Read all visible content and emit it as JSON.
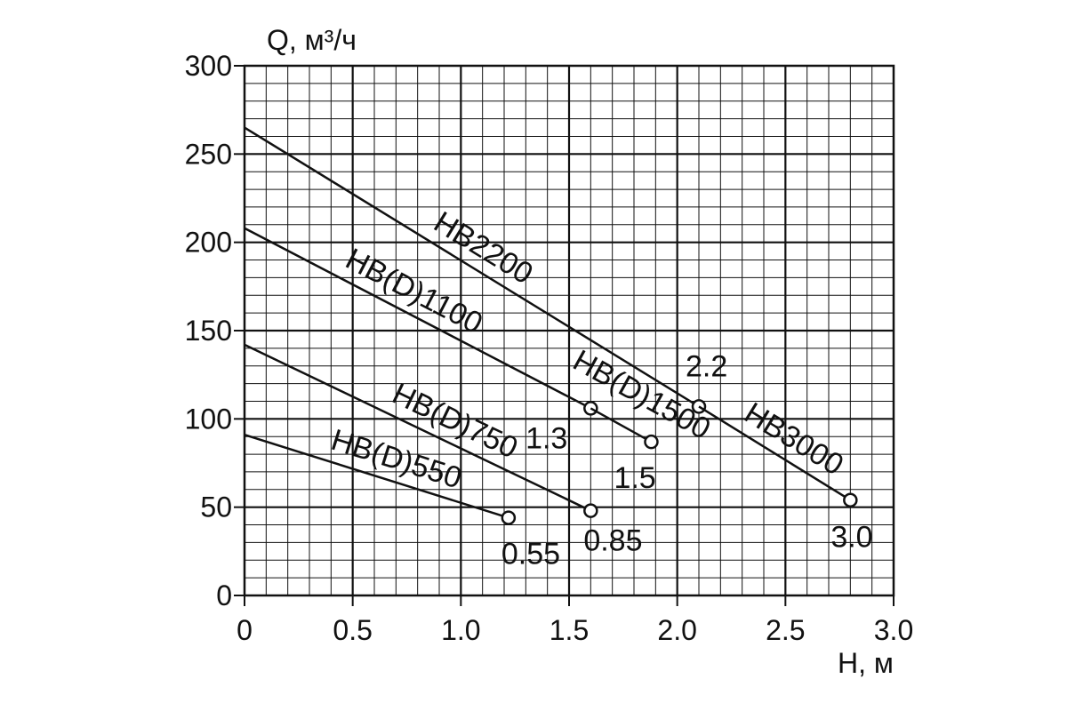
{
  "chart_data": {
    "type": "line",
    "title": "",
    "xlabel": "H, м",
    "ylabel": "Q, м³/ч",
    "xlim": [
      0,
      3.0
    ],
    "ylim": [
      0,
      300
    ],
    "x_ticks": [
      "0",
      "0.5",
      "1.0",
      "1.5",
      "2.0",
      "2.5",
      "3.0"
    ],
    "y_ticks": [
      "0",
      "50",
      "100",
      "150",
      "200",
      "250",
      "300"
    ],
    "grid": true,
    "line_color": "#111111",
    "series": [
      {
        "name": "HB(D)550",
        "x": [
          0,
          1.22
        ],
        "y": [
          91,
          44
        ],
        "end_label": "0.55"
      },
      {
        "name": "HB(D)750",
        "x": [
          0,
          1.6
        ],
        "y": [
          142,
          48
        ],
        "end_label": "0.85"
      },
      {
        "name": "HB(D)1100",
        "x": [
          0,
          1.6
        ],
        "y": [
          208,
          106
        ],
        "end_label": "1.3"
      },
      {
        "name": "HB(D)1500",
        "x": [
          1.6,
          1.88
        ],
        "y": [
          106,
          87
        ],
        "end_label": "1.5"
      },
      {
        "name": "HB2200",
        "x": [
          0,
          2.1
        ],
        "y": [
          265,
          107
        ],
        "end_label": "2.2"
      },
      {
        "name": "HB3000",
        "x": [
          2.1,
          2.8
        ],
        "y": [
          107,
          54
        ],
        "end_label": "3.0"
      }
    ]
  }
}
